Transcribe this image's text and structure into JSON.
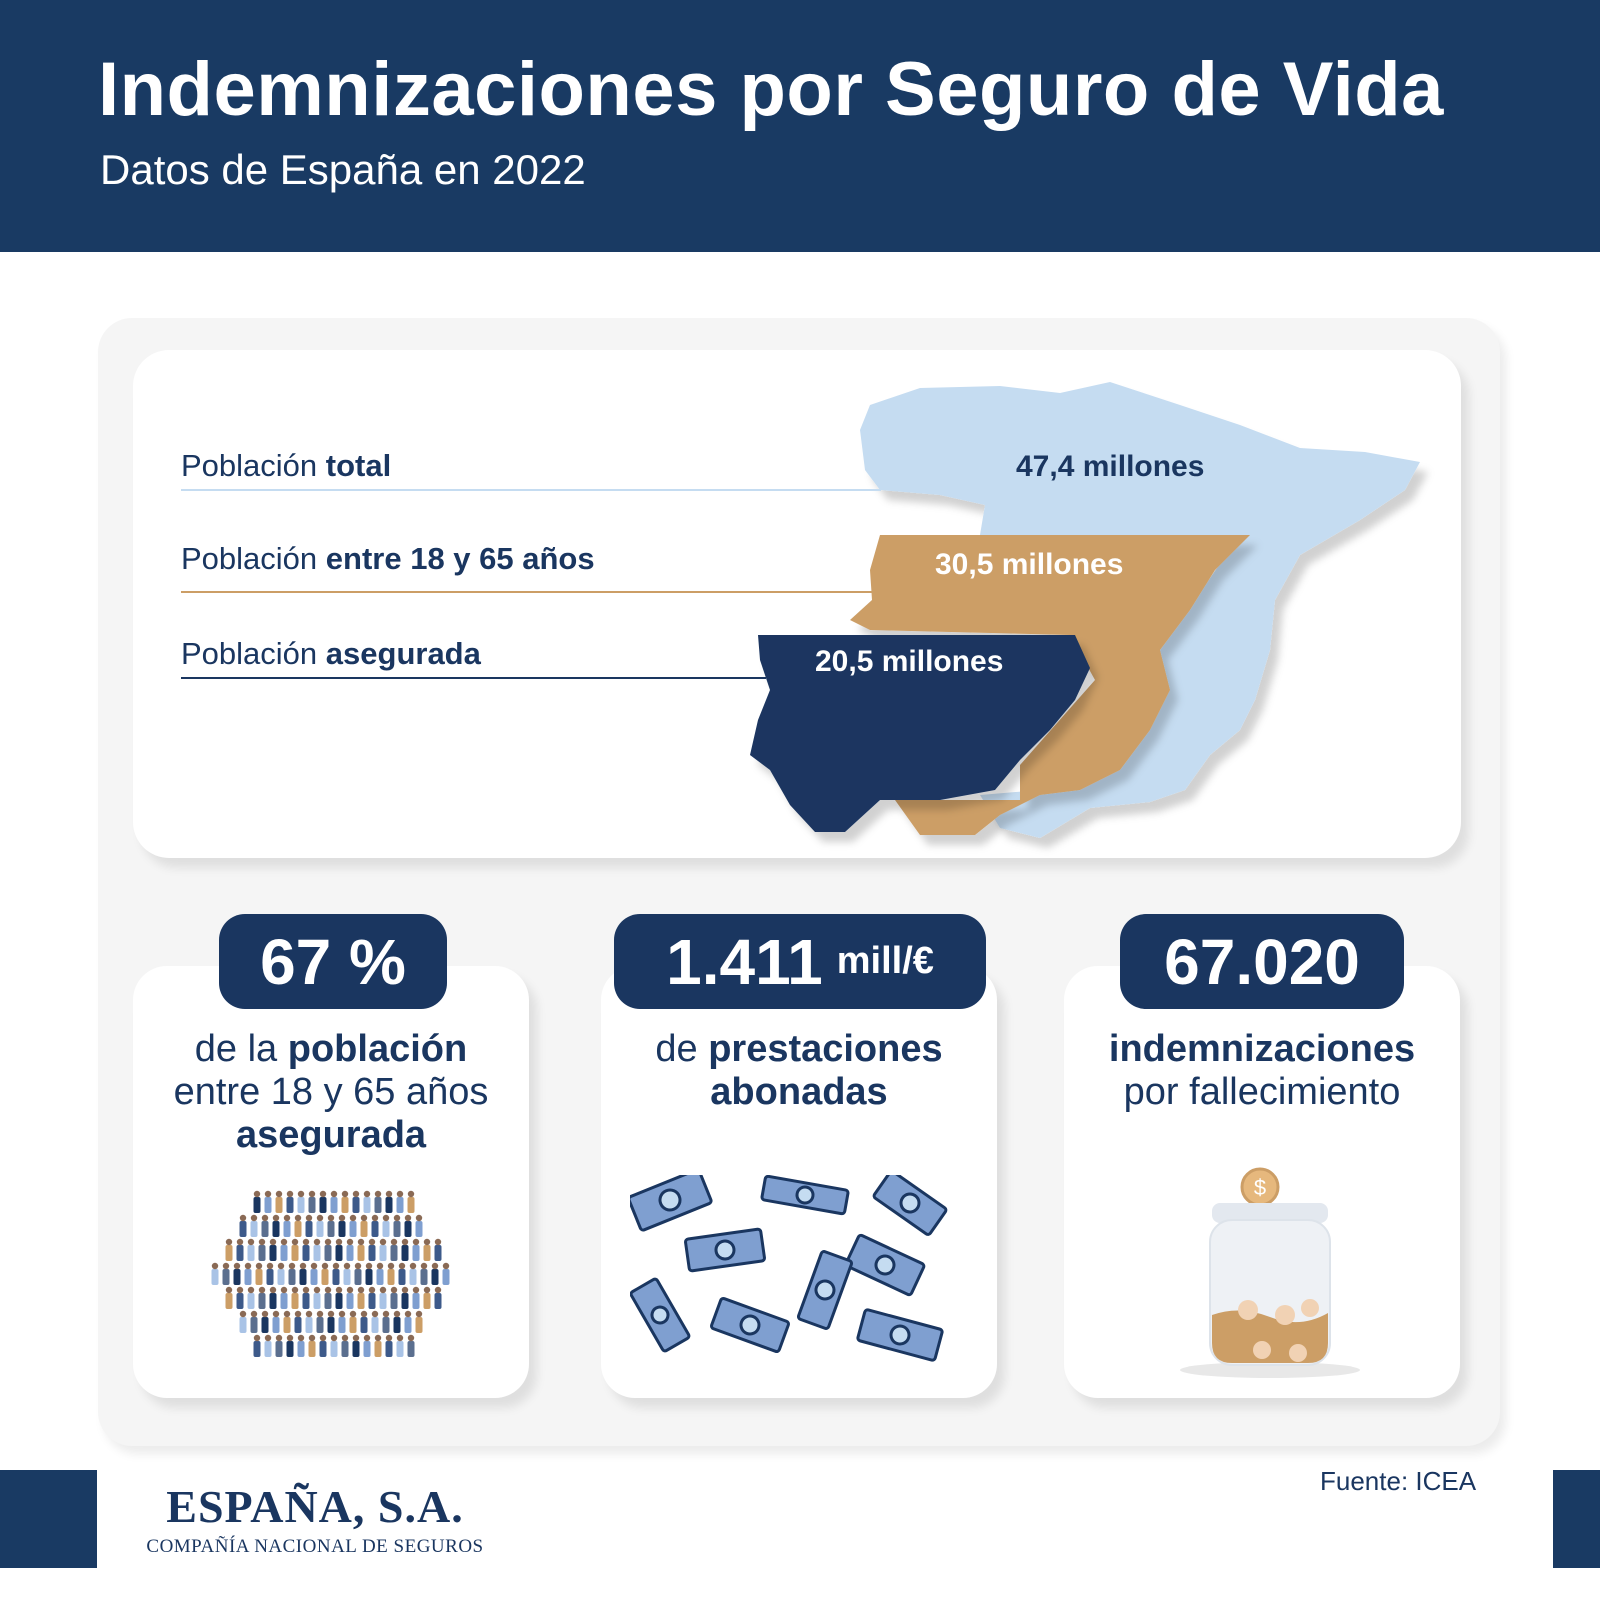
{
  "header": {
    "title": "Indemnizaciones por Seguro de Vida",
    "subtitle": "Datos de España en 2022"
  },
  "population": {
    "rows": [
      {
        "label_plain": "Población ",
        "label_bold": "total",
        "value": "47,4 millones",
        "color": "#c5dcf1"
      },
      {
        "label_plain": "Población ",
        "label_bold": "entre 18 y 65 años",
        "value": "30,5 millones",
        "color": "#cc9e66"
      },
      {
        "label_plain": "Población ",
        "label_bold": "asegurada",
        "value": "20,5 millones",
        "color": "#1a3660"
      }
    ]
  },
  "stats": [
    {
      "big": "67 %",
      "unit": "",
      "line1_plain": "de la ",
      "line1_bold": "población",
      "line2": "entre 18 y 65 años",
      "line3_bold": "asegurada"
    },
    {
      "big": "1.411",
      "unit": "mill/€",
      "line1_plain": "de ",
      "line1_bold": "prestaciones",
      "line2_bold": "abonadas"
    },
    {
      "big": "67.020",
      "unit": "",
      "line1_bold": "indemnizaciones",
      "line2": "por fallecimiento"
    }
  ],
  "footer": {
    "company": "ESPAÑA, S.A.",
    "company_sub": "COMPAÑÍA NACIONAL DE SEGUROS",
    "source": "Fuente: ICEA"
  },
  "icons": [
    "people-crowd-icon",
    "money-bills-icon",
    "coin-jar-icon"
  ],
  "colors": {
    "navy": "#193a63",
    "light_blue": "#c5dcf1",
    "tan": "#cc9e66"
  }
}
